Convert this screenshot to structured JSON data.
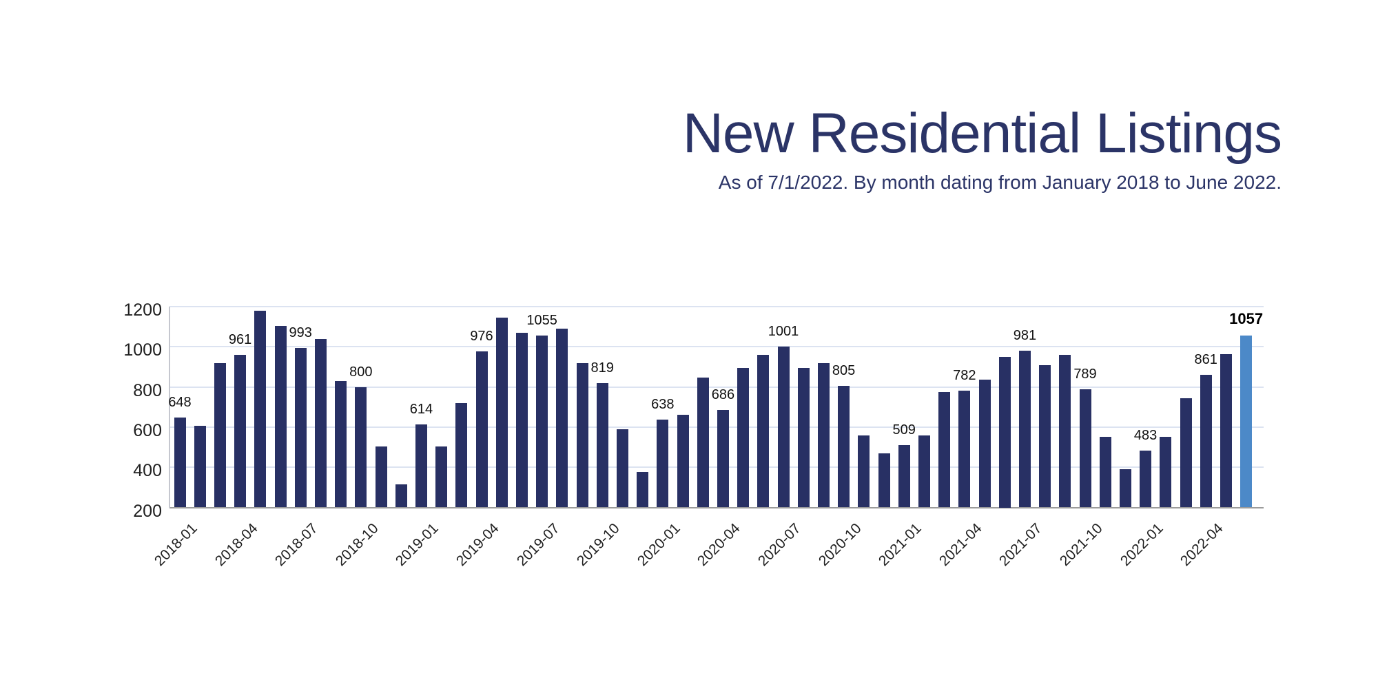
{
  "header": {
    "title": "New Residential Listings",
    "subtitle": "As of 7/1/2022. By month dating from January 2018 to June 2022."
  },
  "chart_data": {
    "type": "bar",
    "title": "New Residential Listings",
    "subtitle": "As of 7/1/2022. By month dating from January 2018 to June 2022.",
    "categories": [
      "2018-01",
      "2018-02",
      "2018-03",
      "2018-04",
      "2018-05",
      "2018-06",
      "2018-07",
      "2018-08",
      "2018-09",
      "2018-10",
      "2018-11",
      "2018-12",
      "2019-01",
      "2019-02",
      "2019-03",
      "2019-04",
      "2019-05",
      "2019-06",
      "2019-07",
      "2019-08",
      "2019-09",
      "2019-10",
      "2019-11",
      "2019-12",
      "2020-01",
      "2020-02",
      "2020-03",
      "2020-04",
      "2020-05",
      "2020-06",
      "2020-07",
      "2020-08",
      "2020-09",
      "2020-10",
      "2020-11",
      "2020-12",
      "2021-01",
      "2021-02",
      "2021-03",
      "2021-04",
      "2021-05",
      "2021-06",
      "2021-07",
      "2021-08",
      "2021-09",
      "2021-10",
      "2021-11",
      "2021-12",
      "2022-01",
      "2022-02",
      "2022-03",
      "2022-04",
      "2022-05",
      "2022-06"
    ],
    "values": [
      648,
      605,
      920,
      961,
      1180,
      1105,
      993,
      1040,
      830,
      800,
      505,
      315,
      614,
      505,
      720,
      976,
      1145,
      1070,
      1055,
      1090,
      920,
      819,
      590,
      375,
      638,
      660,
      845,
      686,
      895,
      960,
      1001,
      895,
      920,
      805,
      560,
      470,
      509,
      560,
      775,
      782,
      835,
      950,
      981,
      910,
      960,
      789,
      550,
      390,
      483,
      550,
      745,
      861,
      965,
      1057
    ],
    "labeled_indices": [
      0,
      3,
      6,
      9,
      12,
      15,
      18,
      21,
      24,
      27,
      30,
      33,
      36,
      39,
      42,
      45,
      48,
      51,
      53
    ],
    "labeled_values": [
      648,
      961,
      993,
      800,
      614,
      976,
      1055,
      819,
      638,
      686,
      1001,
      805,
      509,
      782,
      981,
      789,
      483,
      861,
      1057
    ],
    "x_tick_indices": [
      0,
      3,
      6,
      9,
      12,
      15,
      18,
      21,
      24,
      27,
      30,
      33,
      36,
      39,
      42,
      45,
      48,
      51
    ],
    "y_ticks": [
      200,
      400,
      600,
      800,
      1000,
      1200
    ],
    "ylim": [
      200,
      1200
    ],
    "grid": true,
    "legend": false,
    "highlight_index": 53,
    "colors": {
      "bar": "#283064",
      "highlight_bar": "#4C89C8",
      "gridline": "#DCE3F1",
      "baseline": "#9B9B9B",
      "axis_line": "#C5C7CF",
      "title_text": "#2B3467",
      "tick_text": "#1F1F1F",
      "value_label_text": "#111111",
      "background": "#FFFFFF"
    }
  }
}
